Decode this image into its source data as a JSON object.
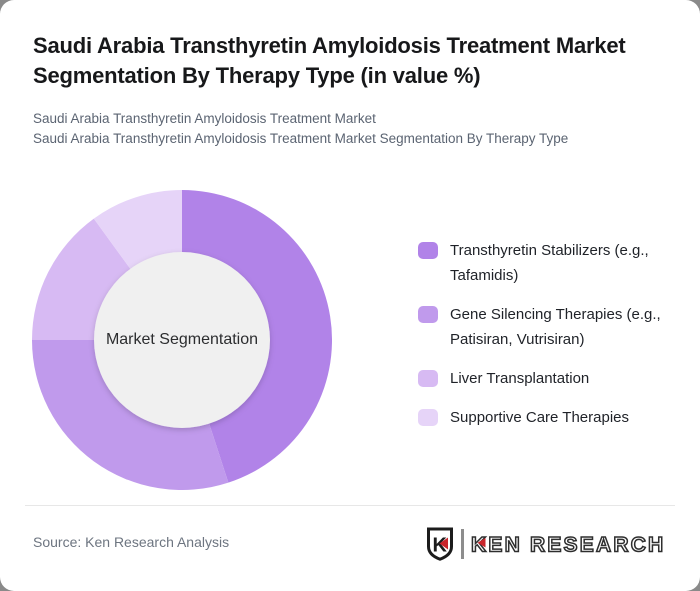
{
  "header": {
    "title": "Saudi Arabia Transthyretin Amyloidosis Treatment Market Segmentation By Therapy Type (in value %)",
    "subtitle_line1": "Saudi Arabia Transthyretin Amyloidosis Treatment Market",
    "subtitle_line2": "Saudi Arabia Transthyretin Amyloidosis Treatment Market Segmentation By Therapy Type"
  },
  "chart_data": {
    "type": "pie",
    "variant": "donut",
    "title": "Saudi Arabia Transthyretin Amyloidosis Treatment Market Segmentation By Therapy Type (in value %)",
    "center_label": "Market Segmentation",
    "values_unit": "percent_of_value",
    "start_angle_deg": 0,
    "direction": "clockwise",
    "legend_position": "right",
    "inner_circle_color": "#f0f0f0",
    "inner_radius_ratio": 0.587,
    "segments": [
      {
        "label": "Transthyretin Stabilizers (e.g., Tafamidis)",
        "value": 45,
        "color": "#b183e8"
      },
      {
        "label": "Gene Silencing Therapies (e.g., Patisiran, Vutrisiran)",
        "value": 30,
        "color": "#c09aec"
      },
      {
        "label": "Liver Transplantation",
        "value": 15,
        "color": "#d7baf3"
      },
      {
        "label": "Supportive Care Therapies",
        "value": 10,
        "color": "#e6d4f8"
      }
    ]
  },
  "footer": {
    "source": "Source: Ken Research Analysis",
    "logo": {
      "shield_letter": "K",
      "wordmark": "KEN RESEARCH",
      "accent_color": "#c9252b",
      "ink_color": "#2e2e2e"
    }
  }
}
